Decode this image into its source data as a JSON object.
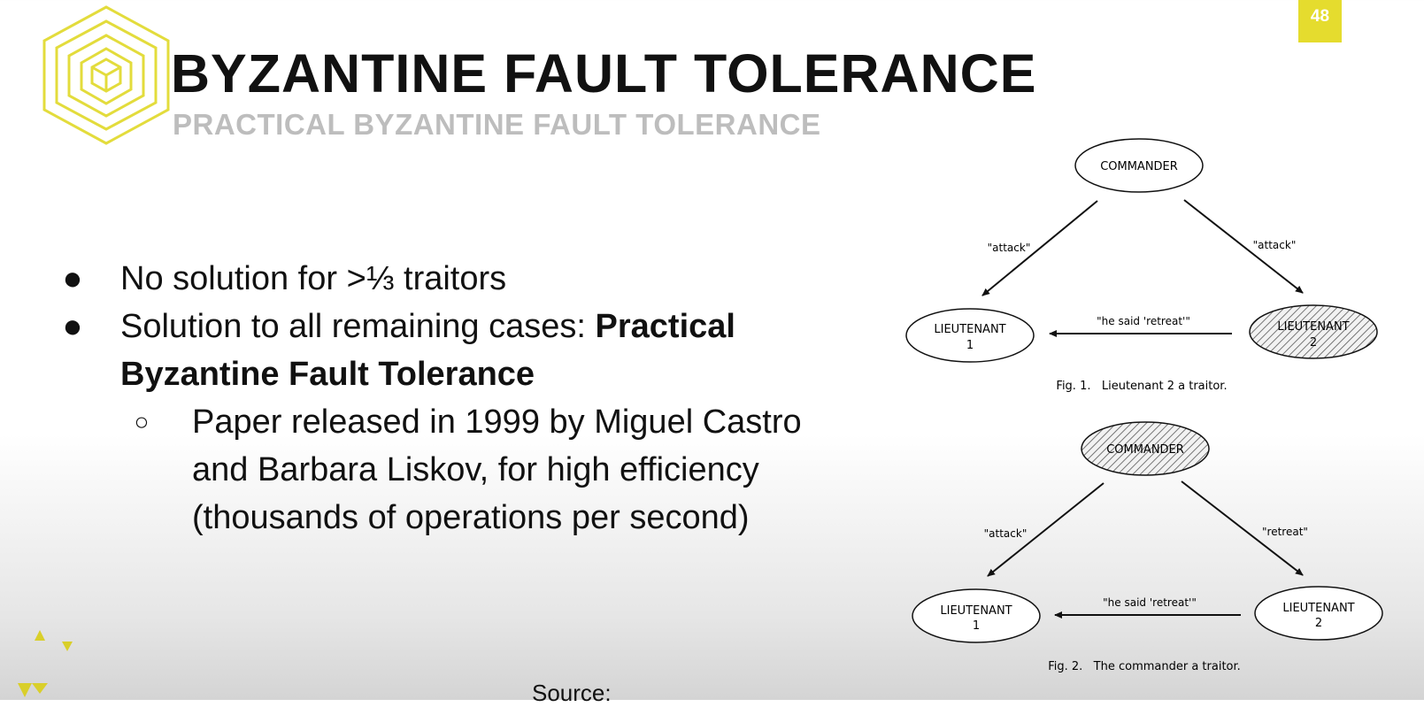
{
  "slide": {
    "number": "48",
    "title": "BYZANTINE FAULT TOLERANCE",
    "subtitle": "PRACTICAL BYZANTINE FAULT TOLERANCE",
    "accent_color": "#e5dc2e",
    "subtitle_color": "#bdbdbd"
  },
  "bullets": [
    {
      "marker": "●",
      "text": "No solution for >⅓ traitors"
    },
    {
      "marker": "●",
      "text": "Solution to all remaining cases: ",
      "bold": "Practical Byzantine Fault Tolerance"
    },
    {
      "marker": "○",
      "text": "Paper released in 1999 by Miguel Castro and Barbara Liskov, for high efficiency (thousands of operations per second)"
    }
  ],
  "source_label": "Source:",
  "figure1": {
    "commander": "COMMANDER",
    "lieutenant1": [
      "LIEUTENANT",
      "1"
    ],
    "lieutenant2": [
      "LIEUTENANT",
      "2"
    ],
    "left_message": "\"attack\"",
    "right_message": "\"attack\"",
    "relay_message": "\"he said 'retreat'\"",
    "caption": "Fig. 1.   Lieutenant 2 a traitor."
  },
  "figure2": {
    "commander": "COMMANDER",
    "lieutenant1": [
      "LIEUTENANT",
      "1"
    ],
    "lieutenant2": [
      "LIEUTENANT",
      "2"
    ],
    "left_message": "\"attack\"",
    "right_message": "\"retreat\"",
    "relay_message": "\"he said 'retreat'\"",
    "caption": "Fig. 2.   The commander a traitor."
  },
  "icons": {
    "logo": "nested-hexagon-cube-logo",
    "decoration": "yellow-triangles"
  }
}
